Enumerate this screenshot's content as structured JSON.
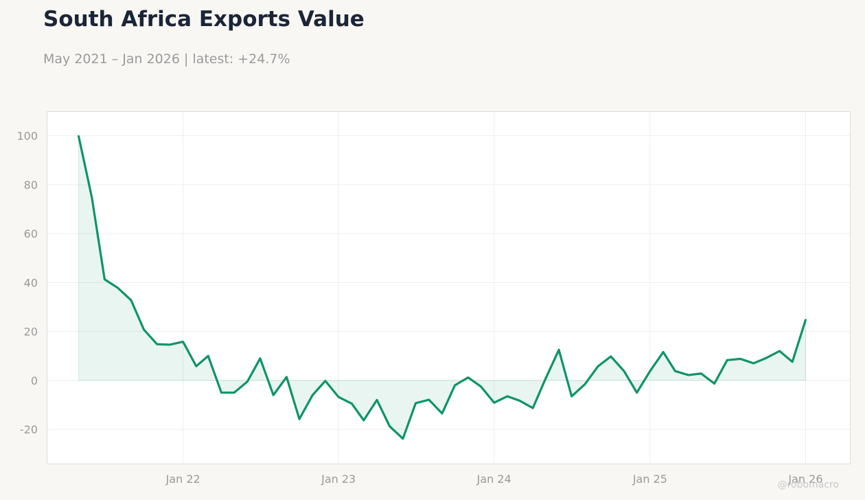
{
  "header": {
    "title": "South Africa Exports Value",
    "subtitle": "May 2021 – Jan 2026 | latest: +24.7%"
  },
  "watermark": "@robomacro",
  "colors": {
    "background": "#f8f7f4",
    "plot_background": "#ffffff",
    "line": "#0d9466",
    "fill": "#0d9466",
    "axis_text": "#999999",
    "title": "#1b2537",
    "grid": "#eeeeee"
  },
  "chart_data": {
    "type": "area",
    "title": "South Africa Exports Value",
    "subtitle": "May 2021 – Jan 2026 | latest: +24.7%",
    "xlabel": "",
    "ylabel": "",
    "ylim": [
      -34,
      110
    ],
    "xlim": [
      "2021-02-15",
      "2026-04-15"
    ],
    "y_ticks": [
      -20,
      0,
      20,
      40,
      60,
      80,
      100
    ],
    "x_ticks": [
      {
        "date": "2022-01-01",
        "label": "Jan 22"
      },
      {
        "date": "2023-01-01",
        "label": "Jan 23"
      },
      {
        "date": "2024-01-01",
        "label": "Jan 24"
      },
      {
        "date": "2025-01-01",
        "label": "Jan 25"
      },
      {
        "date": "2026-01-01",
        "label": "Jan 26"
      }
    ],
    "grid": true,
    "legend": "none",
    "series": [
      {
        "x": [
          "2021-05-01",
          "2021-06-01",
          "2021-07-01",
          "2021-08-01",
          "2021-09-01",
          "2021-10-01",
          "2021-11-01",
          "2021-12-01",
          "2022-01-01",
          "2022-02-01",
          "2022-03-01",
          "2022-04-01",
          "2022-05-01",
          "2022-06-01",
          "2022-07-01",
          "2022-08-01",
          "2022-09-01",
          "2022-10-01",
          "2022-11-01",
          "2022-12-01",
          "2023-01-01",
          "2023-02-01",
          "2023-03-01",
          "2023-04-01",
          "2023-05-01",
          "2023-06-01",
          "2023-07-01",
          "2023-08-01",
          "2023-09-01",
          "2023-10-01",
          "2023-11-01",
          "2023-12-01",
          "2024-01-01",
          "2024-02-01",
          "2024-03-01",
          "2024-04-01",
          "2024-05-01",
          "2024-06-01",
          "2024-07-01",
          "2024-08-01",
          "2024-09-01",
          "2024-10-01",
          "2024-11-01",
          "2024-12-01",
          "2025-01-01",
          "2025-02-01",
          "2025-03-01",
          "2025-04-01",
          "2025-05-01",
          "2025-06-01",
          "2025-07-01",
          "2025-08-01",
          "2025-09-01",
          "2025-10-01",
          "2025-11-01",
          "2025-12-01",
          "2026-01-01"
        ],
        "values": [
          99.8,
          74.8,
          41.3,
          37.8,
          32.8,
          20.8,
          14.8,
          14.6,
          15.8,
          5.8,
          10.0,
          -5.0,
          -5.0,
          -0.5,
          9.0,
          -6.0,
          1.4,
          -15.8,
          -6.0,
          -0.2,
          -6.8,
          -9.5,
          -16.3,
          -8.0,
          -18.8,
          -23.8,
          -9.3,
          -7.9,
          -13.5,
          -2.0,
          1.2,
          -2.5,
          -9.1,
          -6.5,
          -8.3,
          -11.3,
          0.8,
          12.5,
          -6.5,
          -1.6,
          5.8,
          9.8,
          3.8,
          -5.0,
          3.8,
          11.6,
          3.8,
          2.2,
          2.8,
          -1.3,
          8.3,
          8.8,
          7.0,
          9.2,
          12.0,
          7.6,
          24.7
        ]
      }
    ]
  }
}
